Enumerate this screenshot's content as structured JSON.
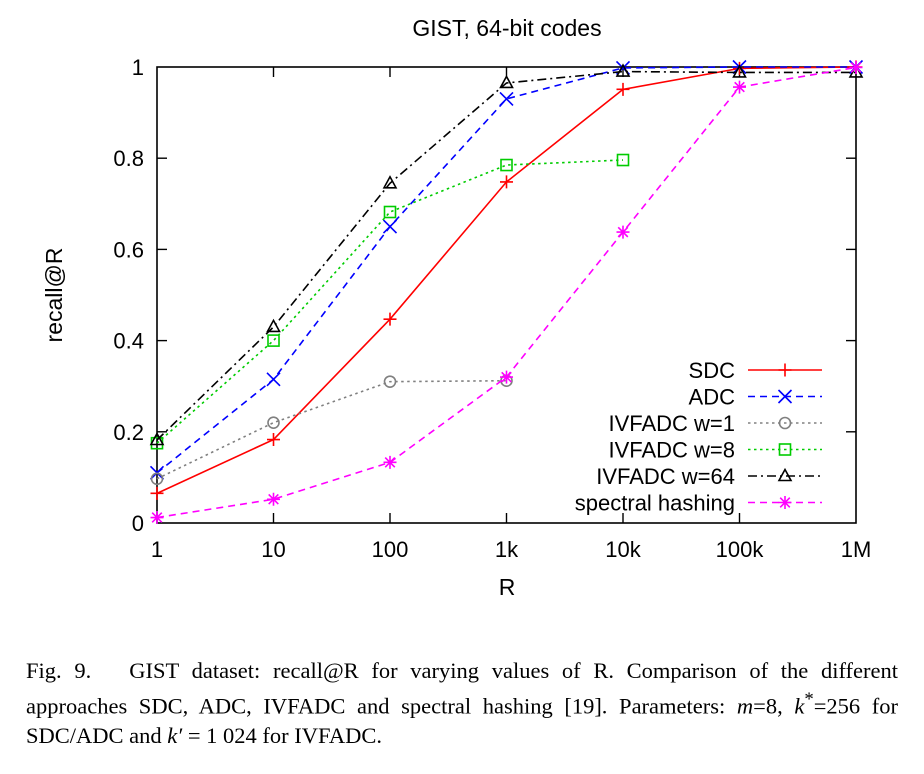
{
  "chart_data": {
    "type": "line",
    "title": "GIST, 64-bit codes",
    "xlabel": "R",
    "ylabel": "recall@R",
    "x_scale": "log",
    "x": [
      1,
      10,
      100,
      1000,
      10000,
      100000,
      1000000
    ],
    "x_tick_labels": [
      "1",
      "10",
      "100",
      "1k",
      "10k",
      "100k",
      "1M"
    ],
    "ylim": [
      0,
      1
    ],
    "y_ticks": [
      0,
      0.2,
      0.4,
      0.6,
      0.8,
      1
    ],
    "y_tick_labels": [
      "0",
      "0.2",
      "0.4",
      "0.6",
      "0.8",
      "1"
    ],
    "grid": false,
    "legend_position": "bottom-right",
    "series": [
      {
        "name": "SDC",
        "color": "#ff0000",
        "dash": "solid",
        "marker": "plus",
        "values": [
          0.065,
          0.183,
          0.447,
          0.748,
          0.951,
          0.997,
          1.0
        ]
      },
      {
        "name": "ADC",
        "color": "#0000ff",
        "dash": "dashed",
        "marker": "x",
        "values": [
          0.11,
          0.315,
          0.65,
          0.93,
          0.998,
          1.0,
          1.0
        ]
      },
      {
        "name": "IVFADC w=1",
        "color": "#808080",
        "dash": "dotted",
        "marker": "circle",
        "values": [
          0.097,
          0.22,
          0.31,
          0.312,
          null,
          null,
          null
        ]
      },
      {
        "name": "IVFADC w=8",
        "color": "#00cc00",
        "dash": "dotted",
        "marker": "square",
        "values": [
          0.175,
          0.4,
          0.682,
          0.785,
          0.796,
          null,
          null
        ]
      },
      {
        "name": "IVFADC w=64",
        "color": "#000000",
        "dash": "dashdot",
        "marker": "triangle",
        "values": [
          0.182,
          0.43,
          0.745,
          0.965,
          0.99,
          0.988,
          0.988
        ]
      },
      {
        "name": "spectral hashing",
        "color": "#ff00ff",
        "dash": "dashed",
        "marker": "asterisk",
        "values": [
          0.012,
          0.052,
          0.133,
          0.32,
          0.638,
          0.956,
          0.999
        ]
      }
    ]
  },
  "caption": {
    "fig_label": "Fig. 9.",
    "text": "GIST dataset: recall@R for varying values of R. Comparison of the different approaches SDC, ADC, IVFADC and spectral hashing [19]. Parameters:",
    "params_m": "m",
    "params_m_val": "=8,",
    "params_k": "k",
    "params_k_sup": "*",
    "params_k_val": "=256 for SDC/ADC and",
    "params_kp": "k′",
    "params_kp_val": " = 1 024 for IVFADC."
  }
}
